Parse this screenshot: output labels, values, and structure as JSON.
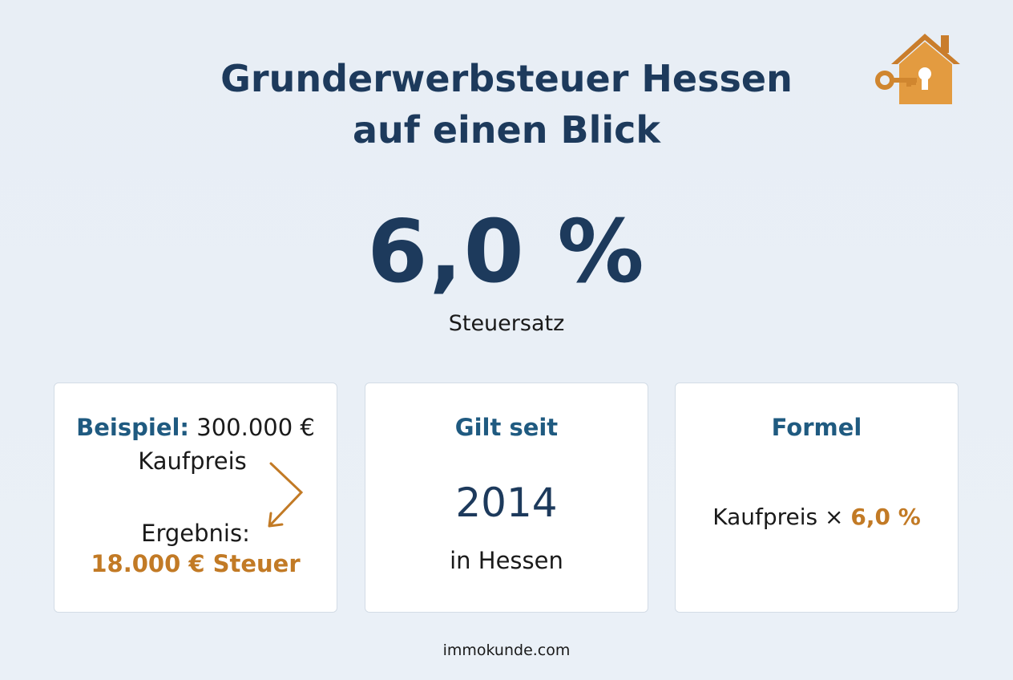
{
  "header": {
    "title_lines": [
      "Grunderwerbsteuer Hessen",
      "auf einen Blick"
    ]
  },
  "rate": {
    "value": "6,0 %",
    "label": "Steuersatz"
  },
  "cards": [
    {
      "label": "Beispiel:",
      "amount": "300.000 €",
      "amount_label": "Kaufpreis",
      "result_label": "Ergebnis:",
      "result": "18.000 € Steuer"
    },
    {
      "title": "Gilt seit",
      "year": "2014",
      "place": "in Hessen"
    },
    {
      "title": "Formel",
      "formula": "Kaufpreis ×",
      "rate": "6,0 %"
    }
  ],
  "footer": "immokunde.com"
}
